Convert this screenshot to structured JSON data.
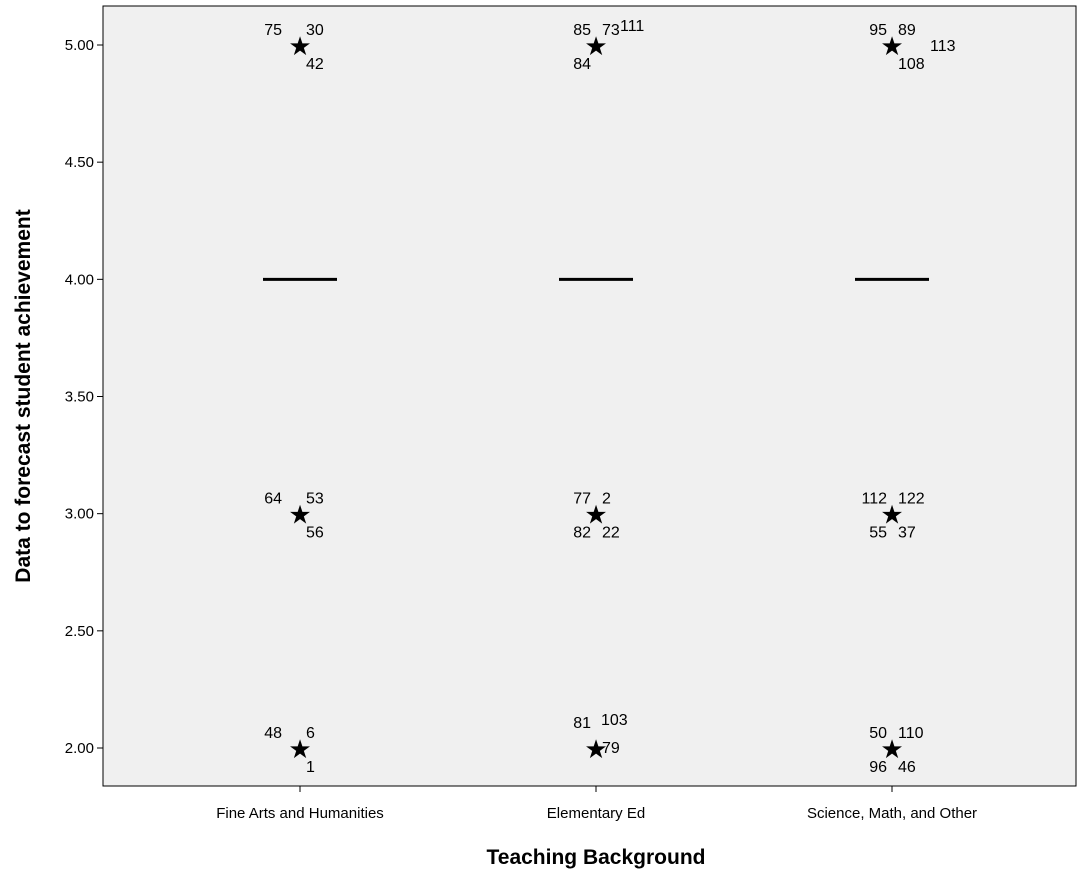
{
  "chart_data": {
    "type": "boxplot",
    "title": "",
    "xlabel": "Teaching Background",
    "ylabel": "Data to forecast student achievement",
    "ylim": [
      1.83,
      5.08
    ],
    "yticks": [
      "2.00",
      "2.50",
      "3.00",
      "3.50",
      "4.00",
      "4.50",
      "5.00"
    ],
    "yticks_values": [
      2.0,
      2.5,
      3.0,
      3.5,
      4.0,
      4.5,
      5.0
    ],
    "grid": false,
    "categories": [
      "Fine Arts and Humanities",
      "Elementary Ed",
      "Science, Math, and Other"
    ],
    "boxes": [
      {
        "category": "Fine Arts and Humanities",
        "median": 4.0,
        "q1": 4.0,
        "q3": 4.0,
        "outliers": [
          {
            "value": 5.0,
            "cases": [
              "75",
              "30",
              "42"
            ]
          },
          {
            "value": 3.0,
            "cases": [
              "64",
              "53",
              "56"
            ]
          },
          {
            "value": 2.0,
            "cases": [
              "48",
              "6",
              "1"
            ]
          }
        ]
      },
      {
        "category": "Elementary Ed",
        "median": 4.0,
        "q1": 4.0,
        "q3": 4.0,
        "outliers": [
          {
            "value": 5.0,
            "cases": [
              "85",
              "73",
              "111",
              "84"
            ]
          },
          {
            "value": 3.0,
            "cases": [
              "77",
              "2",
              "82",
              "22"
            ]
          },
          {
            "value": 2.0,
            "cases": [
              "81",
              "103",
              "79"
            ]
          }
        ]
      },
      {
        "category": "Science, Math, and Other",
        "median": 4.0,
        "q1": 4.0,
        "q3": 4.0,
        "outliers": [
          {
            "value": 5.0,
            "cases": [
              "95",
              "89",
              "113",
              "108"
            ]
          },
          {
            "value": 3.0,
            "cases": [
              "112",
              "122",
              "55",
              "37"
            ]
          },
          {
            "value": 2.0,
            "cases": [
              "50",
              "110",
              "96",
              "46"
            ]
          }
        ]
      }
    ],
    "colors": {
      "plot_background": "#f0f0f0",
      "median_line": "#000000",
      "axis": "#000000"
    },
    "outlier_marker": "★"
  }
}
